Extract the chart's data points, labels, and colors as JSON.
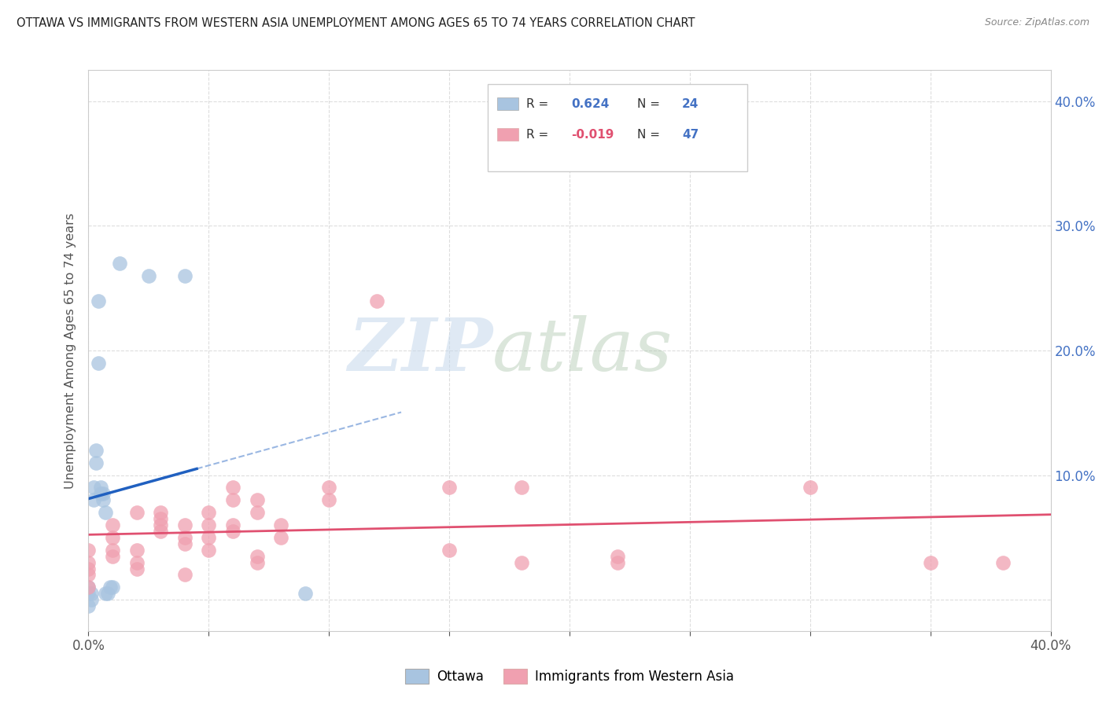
{
  "title": "OTTAWA VS IMMIGRANTS FROM WESTERN ASIA UNEMPLOYMENT AMONG AGES 65 TO 74 YEARS CORRELATION CHART",
  "source": "Source: ZipAtlas.com",
  "ylabel": "Unemployment Among Ages 65 to 74 years",
  "xlim": [
    0.0,
    0.4
  ],
  "ylim": [
    -0.025,
    0.425
  ],
  "xticks": [
    0.0,
    0.05,
    0.1,
    0.15,
    0.2,
    0.25,
    0.3,
    0.35,
    0.4
  ],
  "yticks": [
    0.0,
    0.1,
    0.2,
    0.3,
    0.4
  ],
  "ytick_labels_right": [
    "",
    "10.0%",
    "20.0%",
    "30.0%",
    "40.0%"
  ],
  "xtick_labels": [
    "0.0%",
    "",
    "",
    "",
    "",
    "",
    "",
    "",
    "40.0%"
  ],
  "r_ottawa": 0.624,
  "n_ottawa": 24,
  "r_immigrants": -0.019,
  "n_immigrants": 47,
  "ottawa_color": "#a8c4e0",
  "immigrants_color": "#f0a0b0",
  "ottawa_line_color": "#2060c0",
  "immigrants_line_color": "#e05070",
  "ottawa_dots": [
    [
      0.0,
      0.005
    ],
    [
      0.0,
      0.01
    ],
    [
      0.001,
      0.0
    ],
    [
      0.001,
      0.005
    ],
    [
      0.002,
      0.09
    ],
    [
      0.002,
      0.08
    ],
    [
      0.003,
      0.12
    ],
    [
      0.003,
      0.11
    ],
    [
      0.004,
      0.19
    ],
    [
      0.004,
      0.24
    ],
    [
      0.005,
      0.09
    ],
    [
      0.005,
      0.085
    ],
    [
      0.006,
      0.085
    ],
    [
      0.006,
      0.08
    ],
    [
      0.007,
      0.07
    ],
    [
      0.007,
      0.005
    ],
    [
      0.008,
      0.005
    ],
    [
      0.009,
      0.01
    ],
    [
      0.01,
      0.01
    ],
    [
      0.013,
      0.27
    ],
    [
      0.025,
      0.26
    ],
    [
      0.04,
      0.26
    ],
    [
      0.09,
      0.005
    ],
    [
      0.0,
      -0.005
    ]
  ],
  "immigrants_dots": [
    [
      0.0,
      0.04
    ],
    [
      0.0,
      0.03
    ],
    [
      0.0,
      0.025
    ],
    [
      0.0,
      0.02
    ],
    [
      0.0,
      0.01
    ],
    [
      0.01,
      0.04
    ],
    [
      0.01,
      0.035
    ],
    [
      0.01,
      0.05
    ],
    [
      0.01,
      0.06
    ],
    [
      0.02,
      0.03
    ],
    [
      0.02,
      0.025
    ],
    [
      0.02,
      0.04
    ],
    [
      0.02,
      0.07
    ],
    [
      0.03,
      0.06
    ],
    [
      0.03,
      0.065
    ],
    [
      0.03,
      0.07
    ],
    [
      0.03,
      0.055
    ],
    [
      0.04,
      0.06
    ],
    [
      0.04,
      0.05
    ],
    [
      0.04,
      0.045
    ],
    [
      0.04,
      0.02
    ],
    [
      0.05,
      0.07
    ],
    [
      0.05,
      0.05
    ],
    [
      0.05,
      0.06
    ],
    [
      0.05,
      0.04
    ],
    [
      0.06,
      0.06
    ],
    [
      0.06,
      0.055
    ],
    [
      0.06,
      0.08
    ],
    [
      0.06,
      0.09
    ],
    [
      0.07,
      0.07
    ],
    [
      0.07,
      0.08
    ],
    [
      0.07,
      0.035
    ],
    [
      0.07,
      0.03
    ],
    [
      0.08,
      0.05
    ],
    [
      0.08,
      0.06
    ],
    [
      0.1,
      0.09
    ],
    [
      0.1,
      0.08
    ],
    [
      0.12,
      0.24
    ],
    [
      0.15,
      0.09
    ],
    [
      0.15,
      0.04
    ],
    [
      0.18,
      0.09
    ],
    [
      0.18,
      0.03
    ],
    [
      0.22,
      0.035
    ],
    [
      0.22,
      0.03
    ],
    [
      0.3,
      0.09
    ],
    [
      0.35,
      0.03
    ],
    [
      0.38,
      0.03
    ]
  ],
  "watermark_zip": "ZIP",
  "watermark_atlas": "atlas",
  "background_color": "#ffffff",
  "grid_color": "#dddddd"
}
